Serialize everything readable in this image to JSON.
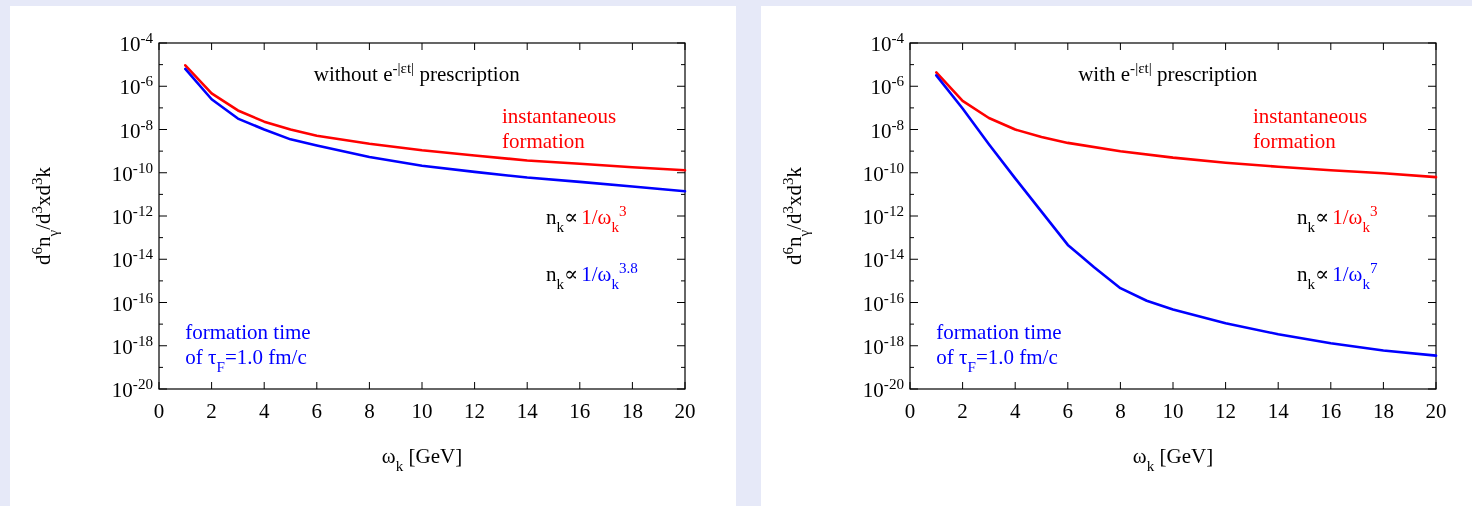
{
  "chart_data": [
    {
      "type": "line",
      "xlabel": "ω$_{k}$ [GeV]",
      "ylabel": "d$^{6}$n$_{γ}$/d$^{3}$xd$^{3}$k",
      "log": "y",
      "xlim": [
        0,
        20
      ],
      "xticks": [
        0,
        2,
        4,
        6,
        8,
        10,
        12,
        14,
        16,
        18,
        20
      ],
      "ylim": [
        1e-20,
        0.0001
      ],
      "yticks": [
        {
          "value": 1e-20,
          "label": "10$^{-20}$"
        },
        {
          "value": 1e-19,
          "label": null
        },
        {
          "value": 1e-18,
          "label": "10$^{-18}$"
        },
        {
          "value": 1e-17,
          "label": null
        },
        {
          "value": 1e-16,
          "label": "10$^{-16}$"
        },
        {
          "value": 1e-15,
          "label": null
        },
        {
          "value": 1e-14,
          "label": "10$^{-14}$"
        },
        {
          "value": 1e-13,
          "label": null
        },
        {
          "value": 1e-12,
          "label": "10$^{-12}$"
        },
        {
          "value": 1e-11,
          "label": null
        },
        {
          "value": 1e-10,
          "label": "10$^{-10}$"
        },
        {
          "value": 1e-09,
          "label": null
        },
        {
          "value": 1e-08,
          "label": "10$^{-8}$"
        },
        {
          "value": 1e-07,
          "label": null
        },
        {
          "value": 1e-06,
          "label": "10$^{-6}$"
        },
        {
          "value": 1e-05,
          "label": null
        },
        {
          "value": 0.0001,
          "label": "10$^{-4}$"
        }
      ],
      "annotations": [
        "without e$^{-|εt|}$ prescription",
        "n$_{k}$∝",
        "1/ω$_{k}$$^{3}$",
        "n$_{k}$∝",
        "1/ω$_{k}$$^{3.8}$"
      ],
      "x": [
        1,
        2,
        3,
        4,
        5,
        6,
        8,
        10,
        12,
        14,
        16,
        18,
        20
      ],
      "series": [
        {
          "name": "instantaneous formation",
          "color": "#ff0000",
          "values": [
            9.3e-06,
            4.7e-07,
            7.6e-08,
            2.3e-08,
            1e-08,
            5.1e-09,
            2.2e-09,
            1.1e-09,
            6.3e-10,
            3.7e-10,
            2.6e-10,
            1.8e-10,
            1.3e-10
          ]
        },
        {
          "name": "formation time of τ$_{F}$=1.0 fm/c",
          "color": "#0000ff",
          "values": [
            6.3e-06,
            2.5e-07,
            3.2e-08,
            1e-08,
            3.5e-09,
            1.8e-09,
            5.4e-10,
            2.1e-10,
            1.1e-10,
            6e-11,
            3.8e-11,
            2.3e-11,
            1.4e-11
          ]
        }
      ]
    },
    {
      "type": "line",
      "xlabel": "ω$_{k}$ [GeV]",
      "ylabel": "d$^{6}$n$_{γ}$/d$^{3}$xd$^{3}$k",
      "log": "y",
      "xlim": [
        0,
        20
      ],
      "xticks": [
        0,
        2,
        4,
        6,
        8,
        10,
        12,
        14,
        16,
        18,
        20
      ],
      "ylim": [
        1e-20,
        0.0001
      ],
      "yticks": [
        {
          "value": 1e-20,
          "label": "10$^{-20}$"
        },
        {
          "value": 1e-19,
          "label": null
        },
        {
          "value": 1e-18,
          "label": "10$^{-18}$"
        },
        {
          "value": 1e-17,
          "label": null
        },
        {
          "value": 1e-16,
          "label": "10$^{-16}$"
        },
        {
          "value": 1e-15,
          "label": null
        },
        {
          "value": 1e-14,
          "label": "10$^{-14}$"
        },
        {
          "value": 1e-13,
          "label": null
        },
        {
          "value": 1e-12,
          "label": "10$^{-12}$"
        },
        {
          "value": 1e-11,
          "label": null
        },
        {
          "value": 1e-10,
          "label": "10$^{-10}$"
        },
        {
          "value": 1e-09,
          "label": null
        },
        {
          "value": 1e-08,
          "label": "10$^{-8}$"
        },
        {
          "value": 1e-07,
          "label": null
        },
        {
          "value": 1e-06,
          "label": "10$^{-6}$"
        },
        {
          "value": 1e-05,
          "label": null
        },
        {
          "value": 0.0001,
          "label": "10$^{-4}$"
        }
      ],
      "annotations": [
        "with e$^{-|εt|}$ prescription",
        "n$_{k}$∝",
        "1/ω$_{k}$$^{3}$",
        "n$_{k}$∝",
        "1/ω$_{k}$$^{7}$"
      ],
      "series": [
        {
          "name": "instantaneous formation",
          "color": "#ff0000",
          "x": [
            1,
            2,
            3,
            4,
            5,
            6,
            8,
            10,
            12,
            14,
            16,
            18,
            20
          ],
          "values": [
            4.4e-06,
            2.1e-07,
            3.4e-08,
            1e-08,
            4.5e-09,
            2.4e-09,
            9.8e-10,
            5e-10,
            2.9e-10,
            1.9e-10,
            1.3e-10,
            9.5e-11,
            6.3e-11
          ]
        },
        {
          "name": "formation time of τ$_{F}$=1.0 fm/c",
          "color": "#0000ff",
          "x": [
            1,
            2,
            3,
            4,
            5,
            6,
            7,
            8,
            9,
            10,
            12,
            14,
            16,
            18,
            20
          ],
          "values": [
            3.2e-06,
            9.3e-08,
            2.1e-09,
            5.5e-11,
            1.6e-12,
            4.6e-14,
            4.3e-15,
            4.6e-16,
            1.2e-16,
            4.7e-17,
            1.1e-17,
            3.4e-18,
            1.3e-18,
            6e-19,
            3.5e-19
          ]
        }
      ]
    }
  ]
}
